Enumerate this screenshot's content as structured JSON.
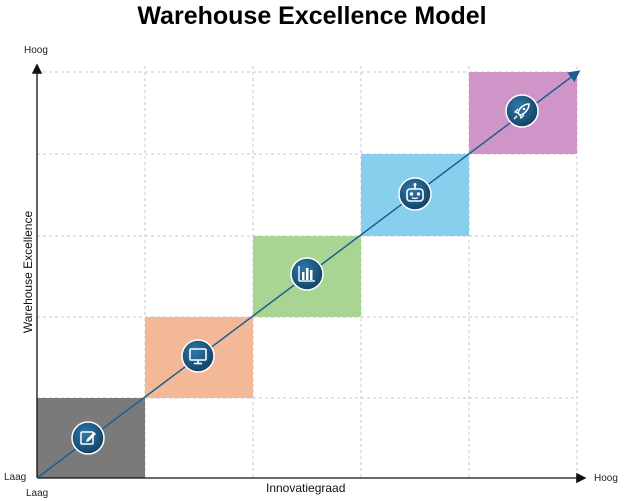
{
  "title": "Warehouse Excellence Model",
  "y_axis": {
    "label": "Warehouse Excellence",
    "high": "Hoog",
    "low": "Laag"
  },
  "x_axis": {
    "label": "Innovatiegraad",
    "high": "Hoog",
    "low": "Laag"
  },
  "steps": [
    {
      "icon": "edit-icon",
      "color": "#7a7a7a"
    },
    {
      "icon": "monitor-icon",
      "color": "#f3b898"
    },
    {
      "icon": "bar-chart-icon",
      "color": "#a8d494"
    },
    {
      "icon": "robot-icon",
      "color": "#87cfec"
    },
    {
      "icon": "rocket-icon",
      "color": "#cf95c8"
    }
  ],
  "colors": {
    "arrow": "#1d5f8f",
    "icon_circle": "#1c5a82",
    "grid": "#c8c8c8"
  }
}
